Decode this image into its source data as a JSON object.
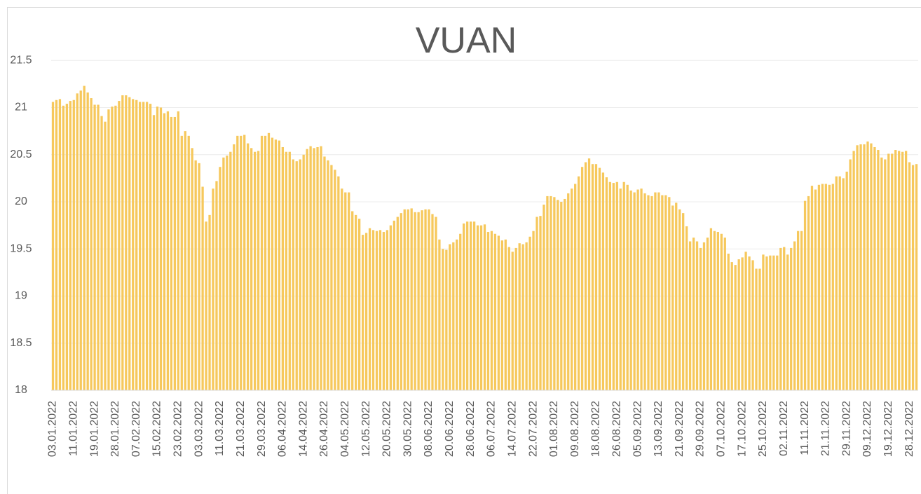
{
  "chart_data": {
    "type": "bar",
    "title": "VUAN",
    "color": "#f6c85c",
    "grid": true,
    "ylim": [
      18,
      22
    ],
    "yticks": [
      18,
      18.5,
      19,
      19.5,
      20,
      20.5,
      21,
      21.5
    ],
    "categories": [
      "03.01.2022",
      null,
      null,
      null,
      null,
      null,
      "11.01.2022",
      null,
      null,
      null,
      null,
      null,
      "19.01.2022",
      null,
      null,
      null,
      null,
      null,
      "28.01.2022",
      null,
      null,
      null,
      null,
      null,
      "07.02.2022",
      null,
      null,
      null,
      null,
      null,
      "15.02.2022",
      null,
      null,
      null,
      null,
      null,
      "23.02.2022",
      null,
      null,
      null,
      null,
      null,
      "03.03.2022",
      null,
      null,
      null,
      null,
      null,
      "11.03.2022",
      null,
      null,
      null,
      null,
      null,
      "21.03.2022",
      null,
      null,
      null,
      null,
      null,
      "29.03.2022",
      null,
      null,
      null,
      null,
      null,
      "06.04.2022",
      null,
      null,
      null,
      null,
      null,
      "14.04.2022",
      null,
      null,
      null,
      null,
      null,
      "26.04.2022",
      null,
      null,
      null,
      null,
      null,
      "04.05.2022",
      null,
      null,
      null,
      null,
      null,
      "12.05.2022",
      null,
      null,
      null,
      null,
      null,
      "20.05.2022",
      null,
      null,
      null,
      null,
      null,
      "30.05.2022",
      null,
      null,
      null,
      null,
      null,
      "08.06.2022",
      null,
      null,
      null,
      null,
      null,
      "20.06.2022",
      null,
      null,
      null,
      null,
      null,
      "28.06.2022",
      null,
      null,
      null,
      null,
      null,
      "06.07.2022",
      null,
      null,
      null,
      null,
      null,
      "14.07.2022",
      null,
      null,
      null,
      null,
      null,
      "22.07.2022",
      null,
      null,
      null,
      null,
      null,
      "01.08.2022",
      null,
      null,
      null,
      null,
      null,
      "09.08.2022",
      null,
      null,
      null,
      null,
      null,
      "18.08.2022",
      null,
      null,
      null,
      null,
      null,
      "26.08.2022",
      null,
      null,
      null,
      null,
      null,
      "05.09.2022",
      null,
      null,
      null,
      null,
      null,
      "13.09.2022",
      null,
      null,
      null,
      null,
      null,
      "21.09.2022",
      null,
      null,
      null,
      null,
      null,
      "29.09.2022",
      null,
      null,
      null,
      null,
      null,
      "07.10.2022",
      null,
      null,
      null,
      null,
      null,
      "17.10.2022",
      null,
      null,
      null,
      null,
      null,
      "25.10.2022",
      null,
      null,
      null,
      null,
      null,
      "02.11.2022",
      null,
      null,
      null,
      null,
      null,
      "11.11.2022",
      null,
      null,
      null,
      null,
      null,
      "21.11.2022",
      null,
      null,
      null,
      null,
      null,
      "29.11.2022",
      null,
      null,
      null,
      null,
      null,
      "09.12.2022",
      null,
      null,
      null,
      null,
      null,
      "19.12.2022",
      null,
      null,
      null,
      null,
      null,
      "28.12.2022",
      null,
      null
    ],
    "values": [
      21.06,
      21.08,
      21.09,
      21.02,
      21.04,
      21.07,
      21.08,
      21.15,
      21.18,
      21.23,
      21.16,
      21.1,
      21.03,
      21.03,
      20.91,
      20.85,
      20.98,
      21.01,
      21.02,
      21.07,
      21.13,
      21.13,
      21.11,
      21.09,
      21.08,
      21.06,
      21.06,
      21.06,
      21.04,
      20.92,
      21.01,
      21.0,
      20.94,
      20.96,
      20.9,
      20.9,
      20.96,
      20.7,
      20.75,
      20.7,
      20.57,
      20.44,
      20.41,
      20.16,
      19.79,
      19.86,
      20.14,
      20.22,
      20.37,
      20.47,
      20.49,
      20.53,
      20.61,
      20.7,
      20.7,
      20.71,
      20.62,
      20.57,
      20.53,
      20.54,
      20.7,
      20.7,
      20.73,
      20.68,
      20.66,
      20.65,
      20.58,
      20.53,
      20.53,
      20.45,
      20.43,
      20.45,
      20.5,
      20.56,
      20.59,
      20.57,
      20.58,
      20.59,
      20.48,
      20.44,
      20.39,
      20.34,
      20.27,
      20.14,
      20.1,
      20.1,
      19.9,
      19.86,
      19.82,
      19.65,
      19.67,
      19.72,
      19.7,
      19.69,
      19.7,
      19.68,
      19.7,
      19.75,
      19.8,
      19.84,
      19.88,
      19.92,
      19.92,
      19.93,
      19.89,
      19.89,
      19.91,
      19.92,
      19.92,
      19.87,
      19.84,
      19.6,
      19.5,
      19.49,
      19.55,
      19.57,
      19.6,
      19.66,
      19.77,
      19.79,
      19.79,
      19.79,
      19.75,
      19.75,
      19.76,
      19.68,
      19.69,
      19.66,
      19.64,
      19.59,
      19.6,
      19.52,
      19.47,
      19.51,
      19.56,
      19.55,
      19.57,
      19.63,
      19.69,
      19.84,
      19.85,
      19.97,
      20.06,
      20.06,
      20.05,
      20.02,
      20.0,
      20.03,
      20.09,
      20.14,
      20.19,
      20.27,
      20.37,
      20.42,
      20.46,
      20.4,
      20.4,
      20.36,
      20.31,
      20.26,
      20.21,
      20.2,
      20.21,
      20.14,
      20.21,
      20.18,
      20.12,
      20.1,
      20.13,
      20.14,
      20.09,
      20.07,
      20.06,
      20.1,
      20.1,
      20.07,
      20.07,
      20.05,
      19.96,
      19.99,
      19.92,
      19.88,
      19.74,
      19.58,
      19.62,
      19.58,
      19.51,
      19.57,
      19.62,
      19.72,
      19.69,
      19.68,
      19.66,
      19.62,
      19.45,
      19.36,
      19.33,
      19.39,
      19.41,
      19.47,
      19.42,
      19.38,
      19.29,
      19.29,
      19.44,
      19.42,
      19.43,
      19.43,
      19.43,
      19.51,
      19.52,
      19.44,
      19.51,
      19.58,
      19.69,
      19.69,
      20.01,
      20.06,
      20.17,
      20.13,
      20.18,
      20.19,
      20.19,
      20.18,
      20.19,
      20.27,
      20.27,
      20.25,
      20.32,
      20.45,
      20.54,
      20.6,
      20.61,
      20.61,
      20.64,
      20.62,
      20.58,
      20.55,
      20.47,
      20.45,
      20.51,
      20.51,
      20.55,
      20.54,
      20.53,
      20.54,
      20.42,
      20.39,
      20.4
    ]
  }
}
